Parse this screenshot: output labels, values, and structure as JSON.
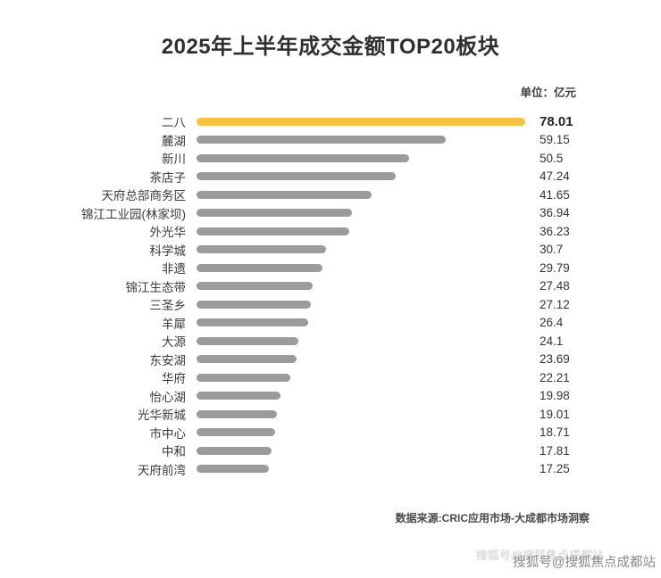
{
  "chart_data": {
    "type": "bar",
    "orientation": "horizontal",
    "title": "2025年上半年成交金额TOP20板块",
    "unit_label": "单位：亿元",
    "categories": [
      "二八",
      "麓湖",
      "新川",
      "茶店子",
      "天府总部商务区",
      "锦江工业园(林家坝)",
      "外光华",
      "科学城",
      "非遗",
      "锦江生态带",
      "三圣乡",
      "羊犀",
      "大源",
      "东安湖",
      "华府",
      "怡心湖",
      "光华新城",
      "市中心",
      "中和",
      "天府前湾"
    ],
    "values": [
      78.01,
      59.15,
      50.5,
      47.24,
      41.65,
      36.94,
      36.23,
      30.7,
      29.79,
      27.48,
      27.12,
      26.4,
      24.1,
      23.69,
      22.21,
      19.98,
      19.01,
      18.71,
      17.81,
      17.25
    ],
    "xlim": [
      0,
      78.01
    ],
    "highlight_index": 0,
    "highlight_color": "#F5C242",
    "bar_color": "#9B9B9B",
    "legend": "none",
    "grid": "off"
  },
  "footer": {
    "source": "数据来源:CRIC应用市场-大成都市场洞察"
  },
  "watermark": {
    "text": "搜狐号@搜狐焦点成都站"
  }
}
